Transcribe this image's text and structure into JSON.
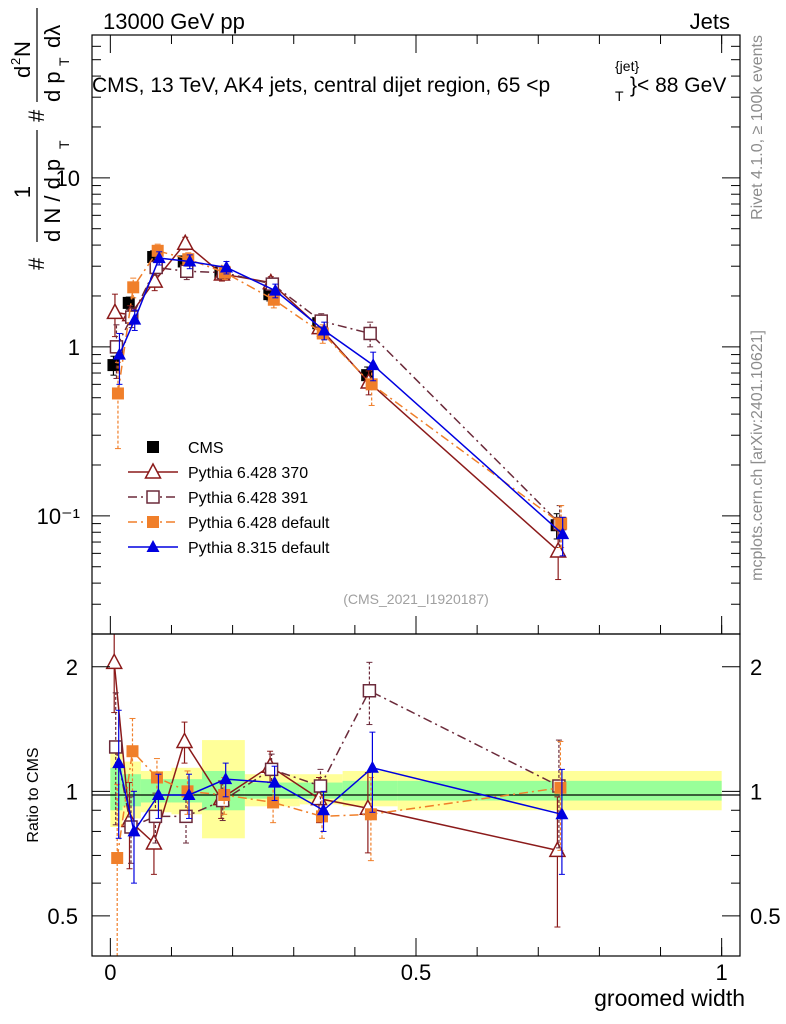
{
  "header": {
    "left": "13000 GeV pp",
    "right": "Jets",
    "title": "CMS, 13 TeV, AK4 jets, central dijet region, 65 <p",
    "title_sup": "{jet}",
    "title_sub": "T",
    "title_end": "}< 88 GeV",
    "side_right_top": "Rivet 4.1.0, ≥ 100k events",
    "side_right_bottom": "mcplots.cern.ch [arXiv:2401.10621]",
    "analysis_id": "(CMS_2021_I1920187)"
  },
  "yaxis_top": {
    "parts": [
      "#",
      "1",
      "d N / d p",
      "T",
      "#",
      "d",
      "2",
      "N",
      "d p",
      "T",
      "dλ"
    ]
  },
  "yaxis_bottom": {
    "label": "Ratio to CMS"
  },
  "xaxis": {
    "label": "groomed width",
    "ticks": [
      "0",
      "0.5",
      "1"
    ]
  },
  "top_ticks": {
    "labels": [
      "10",
      "1",
      "10⁻¹"
    ]
  },
  "bottom_ticks": {
    "labels": [
      "2",
      "1",
      "0.5"
    ]
  },
  "legend": {
    "entries": [
      "CMS",
      "Pythia 6.428 370",
      "Pythia 6.428 391",
      "Pythia 6.428 default",
      "Pythia 8.315 default"
    ]
  },
  "chart_data": {
    "type": "line",
    "title": "CMS, 13 TeV, AK4 jets, central dijet region, 65 <p_T^{jet}< 88 GeV",
    "xlabel": "groomed width",
    "ylabel": "1/(dN/dp_T) d²N/(dp_T dλ)",
    "x_range": [
      -0.03,
      1.03
    ],
    "y_range": [
      0.02,
      70
    ],
    "y_scale": "log",
    "ratio_range": [
      0.4,
      2.4
    ],
    "ratio_scale": "log",
    "x": [
      0.01,
      0.035,
      0.075,
      0.125,
      0.185,
      0.265,
      0.345,
      0.425,
      0.735
    ],
    "x_edges": [
      0.0,
      0.02,
      0.05,
      0.1,
      0.15,
      0.22,
      0.31,
      0.38,
      0.47,
      1.0
    ],
    "series": [
      {
        "name": "CMS",
        "color": "#000000",
        "marker": "square-filled",
        "line": "none",
        "values": [
          0.78,
          1.82,
          3.4,
          3.2,
          2.75,
          2.05,
          1.38,
          0.68,
          0.088
        ],
        "errors": [
          0.1,
          0.15,
          0.3,
          0.25,
          0.2,
          0.18,
          0.12,
          0.08,
          0.015
        ]
      },
      {
        "name": "Pythia 6.428 370",
        "color": "#8b1a1a",
        "marker": "triangle-open",
        "line": "solid",
        "values": [
          1.6,
          1.55,
          2.45,
          4.1,
          2.7,
          2.4,
          1.3,
          0.62,
          0.062
        ],
        "errors": [
          0.45,
          0.2,
          0.3,
          0.35,
          0.25,
          0.2,
          0.15,
          0.1,
          0.02
        ]
      },
      {
        "name": "Pythia 6.428 391",
        "color": "#6b2a3a",
        "marker": "square-open",
        "line": "dashdot",
        "values": [
          1.0,
          1.5,
          2.95,
          2.8,
          2.75,
          2.35,
          1.42,
          1.2,
          0.09
        ],
        "errors": [
          0.35,
          0.2,
          0.3,
          0.3,
          0.25,
          0.2,
          0.15,
          0.2,
          0.025
        ]
      },
      {
        "name": "Pythia 6.428 default",
        "color": "#f07f2a",
        "marker": "square-filled",
        "line": "dashdot",
        "values": [
          0.53,
          2.25,
          3.7,
          3.3,
          2.75,
          1.9,
          1.2,
          0.6,
          0.09
        ],
        "errors": [
          0.28,
          0.3,
          0.35,
          0.3,
          0.25,
          0.2,
          0.15,
          0.15,
          0.025
        ]
      },
      {
        "name": "Pythia 8.315 default",
        "color": "#0000e0",
        "marker": "triangle-filled",
        "line": "solid",
        "values": [
          0.9,
          1.45,
          3.35,
          3.2,
          2.95,
          2.15,
          1.25,
          0.78,
          0.078
        ],
        "errors": [
          0.3,
          0.2,
          0.3,
          0.3,
          0.25,
          0.2,
          0.15,
          0.15,
          0.02
        ]
      }
    ],
    "ratio_series": [
      {
        "name": "Pythia 6.428 370",
        "values": [
          2.05,
          0.85,
          0.75,
          1.32,
          0.96,
          1.15,
          0.96,
          0.91,
          0.72
        ],
        "errors": [
          0.5,
          0.2,
          0.12,
          0.15,
          0.1,
          0.1,
          0.12,
          0.2,
          0.25
        ]
      },
      {
        "name": "Pythia 6.428 391",
        "values": [
          1.28,
          0.82,
          0.87,
          0.87,
          0.95,
          1.13,
          1.03,
          1.75,
          1.03
        ],
        "errors": [
          0.45,
          0.15,
          0.12,
          0.12,
          0.1,
          0.1,
          0.1,
          0.3,
          0.3
        ]
      },
      {
        "name": "Pythia 6.428 default",
        "values": [
          0.69,
          1.25,
          1.08,
          1.0,
          0.98,
          0.94,
          0.87,
          0.88,
          1.02
        ],
        "errors": [
          0.35,
          0.25,
          0.12,
          0.12,
          0.1,
          0.1,
          0.1,
          0.2,
          0.3
        ]
      },
      {
        "name": "Pythia 8.315 default",
        "values": [
          1.17,
          0.8,
          0.98,
          0.98,
          1.07,
          1.05,
          0.9,
          1.14,
          0.88
        ],
        "errors": [
          0.4,
          0.2,
          0.12,
          0.12,
          0.1,
          0.1,
          0.1,
          0.25,
          0.25
        ]
      }
    ],
    "band_yellow": [
      [
        0.0,
        0.02,
        0.82,
        1.28
      ],
      [
        0.02,
        0.05,
        0.86,
        1.18
      ],
      [
        0.05,
        0.1,
        0.89,
        1.12
      ],
      [
        0.1,
        0.15,
        0.88,
        1.14
      ],
      [
        0.15,
        0.22,
        0.77,
        1.33
      ],
      [
        0.22,
        0.31,
        0.92,
        1.1
      ],
      [
        0.31,
        0.38,
        0.93,
        1.1
      ],
      [
        0.38,
        0.47,
        0.92,
        1.12
      ],
      [
        0.47,
        1.0,
        0.9,
        1.12
      ]
    ],
    "band_green": [
      [
        0.0,
        0.02,
        0.9,
        1.14
      ],
      [
        0.02,
        0.05,
        0.92,
        1.1
      ],
      [
        0.05,
        0.1,
        0.94,
        1.07
      ],
      [
        0.1,
        0.15,
        0.94,
        1.07
      ],
      [
        0.15,
        0.22,
        0.9,
        1.12
      ],
      [
        0.22,
        0.31,
        0.96,
        1.05
      ],
      [
        0.31,
        0.38,
        0.96,
        1.05
      ],
      [
        0.38,
        0.47,
        0.95,
        1.06
      ],
      [
        0.47,
        1.0,
        0.95,
        1.06
      ]
    ]
  }
}
